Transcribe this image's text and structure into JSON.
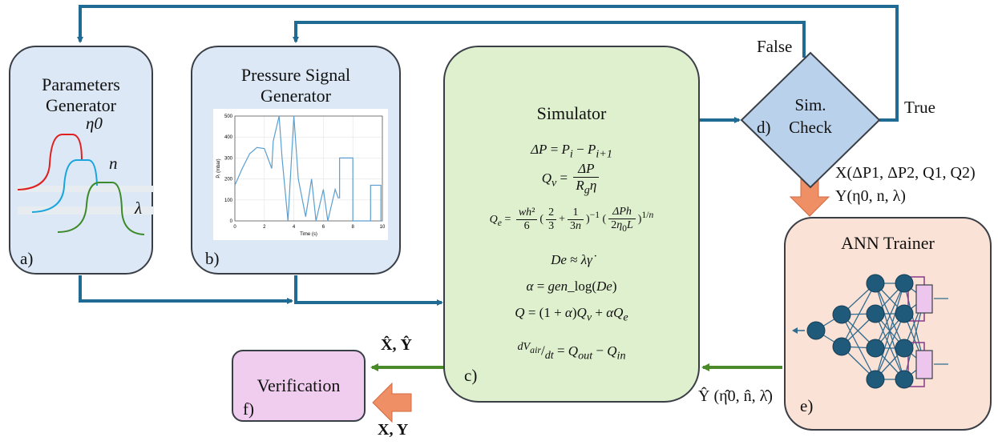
{
  "boxes": {
    "params": {
      "title_line1": "Parameters",
      "title_line2": "Generator",
      "tag": "a)",
      "curve_labels": [
        "η0",
        "n",
        "λ"
      ]
    },
    "pressure": {
      "title_line1": "Pressure Signal",
      "title_line2": "Generator",
      "tag": "b)"
    },
    "simulator": {
      "title": "Simulator",
      "tag": "c)",
      "equations": [
        "ΔP = Pi − Pi+1",
        "Qv = ΔP / (Rg η)",
        "Qe = (wh²/6)(2/3 + 1/(3n))⁻¹ (ΔPh/(2η0L))^(1/n)",
        "De ≈ λγ̇",
        "α = gen_log(De)",
        "Q = (1 + α)Qv + αQe",
        "dVair/dt = Qout − Qin"
      ]
    },
    "check": {
      "line1": "Sim.",
      "line2": "Check",
      "tag": "d)"
    },
    "ann": {
      "title": "ANN Trainer",
      "tag": "e)"
    },
    "verification": {
      "title": "Verification",
      "tag": "f)"
    }
  },
  "labels": {
    "false": "False",
    "true": "True",
    "x_out": "X(ΔP1, ΔP2, Q1, Q2)",
    "y_out": "Y(η0, n, λ)",
    "xy_hat": "X̂, Ŷ",
    "y_hat_pred": "Ŷ (η̂0, n̂, λ̂)",
    "xy_in": "X, Y"
  },
  "colors": {
    "blue_arrow": "#1f6b94",
    "green_arrow": "#4a8a28",
    "orange_arrow": "#ee8f66",
    "blue_box": "#dce8f5",
    "green_box": "#dff0cf",
    "peach_box": "#fbe2d6",
    "pink_box": "#f0cdef",
    "diamond": "#b9d1ea",
    "node": "#1f5a7a"
  },
  "chart_data": {
    "type": "line",
    "xlabel": "Time (s)",
    "ylabel": "Pᵢ (mbar)",
    "xlim": [
      0,
      10
    ],
    "ylim": [
      0,
      500
    ],
    "x_ticks": [
      "0",
      "2",
      "4",
      "6",
      "8",
      "10"
    ],
    "y_ticks": [
      "0",
      "100",
      "200",
      "300",
      "400",
      "500"
    ],
    "grid": true,
    "series": [
      {
        "x": [
          0,
          0.5,
          1,
          1.5,
          2,
          2.5,
          2.6,
          3,
          3.2,
          3.6,
          4,
          4.3,
          4.8,
          5.2,
          5.5,
          6,
          6.3,
          6.8,
          7,
          7.1,
          7.1,
          8.0,
          8.0,
          9.2,
          9.2,
          9.9,
          9.9,
          10
        ],
        "y": [
          170,
          250,
          320,
          350,
          345,
          250,
          380,
          500,
          300,
          0,
          500,
          200,
          20,
          200,
          0,
          150,
          0,
          150,
          110,
          110,
          300,
          300,
          0,
          0,
          170,
          170,
          0,
          0
        ]
      }
    ]
  }
}
